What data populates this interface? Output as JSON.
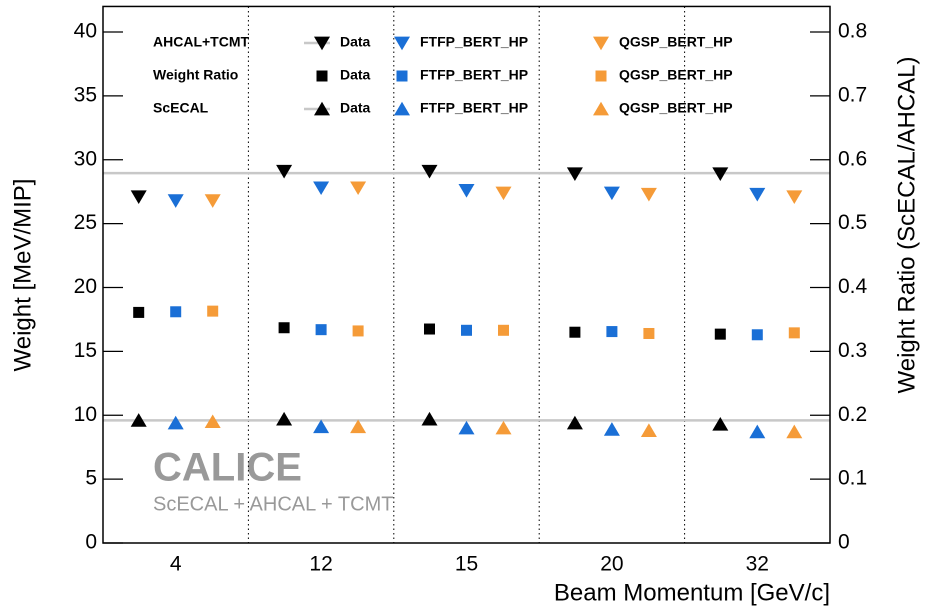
{
  "chart_data": {
    "type": "scatter",
    "xlabel": "Beam Momentum [GeV/c]",
    "ylabel": "Weight [MeV/MIP]",
    "y2label": "Weight Ratio (ScECAL/AHCAL)",
    "categories": [
      "4",
      "12",
      "15",
      "20",
      "32"
    ],
    "ylim": [
      0,
      42
    ],
    "yticks": [
      0,
      5,
      10,
      15,
      20,
      25,
      30,
      35,
      40
    ],
    "y2lim": [
      0,
      0.84
    ],
    "y2ticks": [
      0,
      0.1,
      0.2,
      0.3,
      0.4,
      0.5,
      0.6,
      0.7,
      0.8
    ],
    "hlines": [
      28.95,
      9.6
    ],
    "watermark": "CALICE",
    "watermark_sub": "ScECAL + AHCAL + TCMT",
    "groups": [
      {
        "label": "AHCAL+TCMT",
        "marker": "triangle-down",
        "axis": "y",
        "series": [
          {
            "name": "Data",
            "color": "#000000",
            "values": [
              27.1,
              29.1,
              29.1,
              28.9,
              28.9
            ]
          },
          {
            "name": "FTFP_BERT_HP",
            "color": "#1a6fd6",
            "values": [
              26.8,
              27.8,
              27.6,
              27.4,
              27.3
            ]
          },
          {
            "name": "QGSP_BERT_HP",
            "color": "#f59b38",
            "values": [
              26.8,
              27.8,
              27.4,
              27.3,
              27.1
            ]
          }
        ]
      },
      {
        "label": "Weight Ratio",
        "marker": "square",
        "axis": "y2",
        "series": [
          {
            "name": "Data",
            "color": "#000000",
            "values": [
              0.361,
              0.337,
              0.335,
              0.33,
              0.327
            ]
          },
          {
            "name": "FTFP_BERT_HP",
            "color": "#1a6fd6",
            "values": [
              0.362,
              0.334,
              0.333,
              0.331,
              0.326
            ]
          },
          {
            "name": "QGSP_BERT_HP",
            "color": "#f59b38",
            "values": [
              0.363,
              0.332,
              0.333,
              0.328,
              0.329
            ]
          }
        ]
      },
      {
        "label": "ScECAL",
        "marker": "triangle-up",
        "axis": "y",
        "series": [
          {
            "name": "Data",
            "color": "#000000",
            "values": [
              9.6,
              9.7,
              9.7,
              9.4,
              9.3
            ]
          },
          {
            "name": "FTFP_BERT_HP",
            "color": "#1a6fd6",
            "values": [
              9.4,
              9.1,
              9.0,
              8.9,
              8.7
            ]
          },
          {
            "name": "QGSP_BERT_HP",
            "color": "#f59b38",
            "values": [
              9.5,
              9.1,
              9.0,
              8.8,
              8.7
            ]
          }
        ]
      }
    ]
  }
}
